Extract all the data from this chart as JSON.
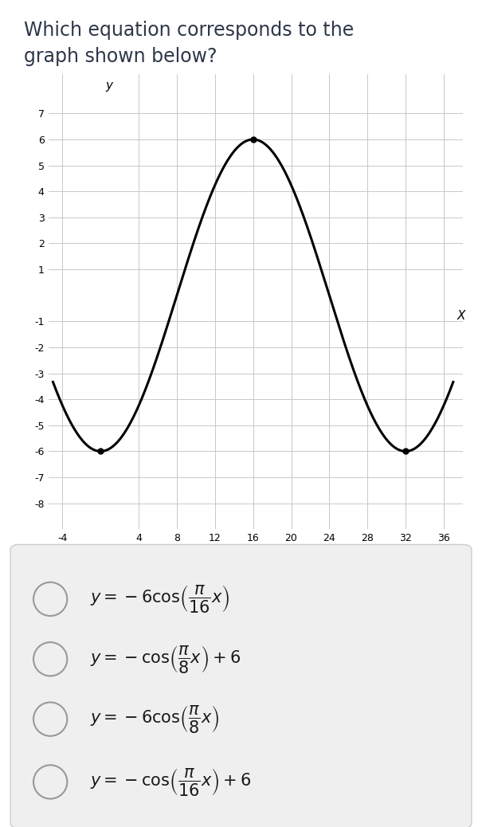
{
  "title_line1": "Which equation corresponds to the",
  "title_line2": "graph shown below?",
  "title_fontsize": 17,
  "title_color": "#2d3748",
  "bg_color": "#ffffff",
  "plot_bg_color": "#ffffff",
  "grid_color": "#c8c8c8",
  "axis_color": "#000000",
  "curve_color": "#000000",
  "curve_lw": 2.2,
  "xlim": [
    -5.5,
    38
  ],
  "ylim": [
    -9,
    8.5
  ],
  "xticks": [
    -4,
    4,
    8,
    12,
    16,
    20,
    24,
    28,
    32,
    36
  ],
  "yticks": [
    -8,
    -7,
    -6,
    -5,
    -4,
    -3,
    -2,
    -1,
    1,
    2,
    3,
    4,
    5,
    6,
    7
  ],
  "xlabel": "X",
  "ylabel": "y",
  "func_amplitude": -6,
  "func_freq": 0.19634954084936207,
  "x_start": -5,
  "x_end": 37,
  "dot_points": [
    [
      0,
      -6
    ],
    [
      16,
      6
    ],
    [
      32,
      -6
    ]
  ],
  "dot_size": 5,
  "answer_bg": "#efefef",
  "answer_border": "#cccccc",
  "option_fontsize": 15,
  "radio_color": "#999999",
  "text_color": "#1a1a1a"
}
